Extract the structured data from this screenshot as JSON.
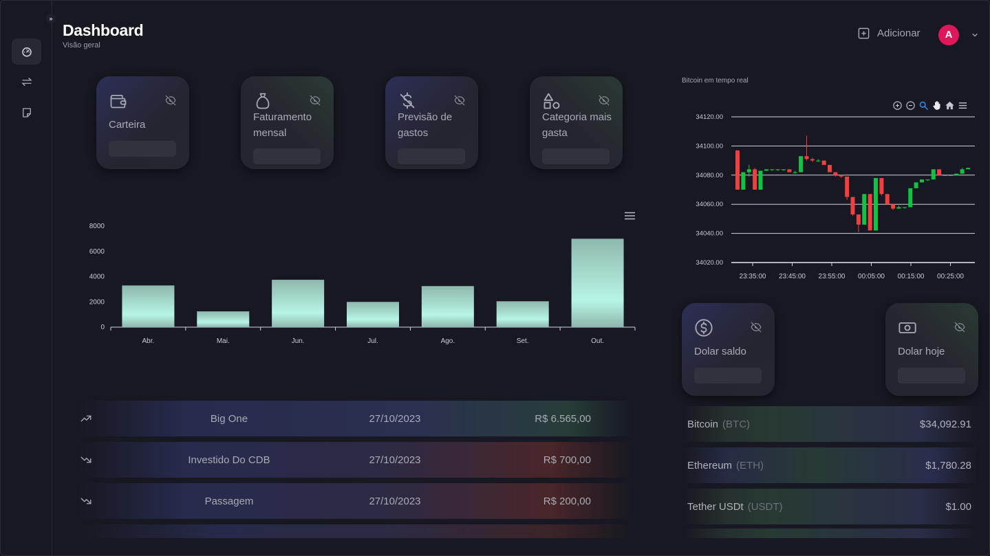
{
  "header": {
    "title": "Dashboard",
    "subtitle": "Visão geral",
    "add_label": "Adicionar",
    "avatar_initial": "A"
  },
  "sidebar": {
    "expand_label": "»",
    "items": [
      {
        "name": "dashboard",
        "icon": "gauge-icon",
        "active": true
      },
      {
        "name": "transactions",
        "icon": "arrows-exchange-icon",
        "active": false
      },
      {
        "name": "notes",
        "icon": "note-icon",
        "active": false
      }
    ]
  },
  "cards": [
    {
      "label": "Carteira",
      "icon": "wallet-icon"
    },
    {
      "label": "Faturamento mensal",
      "icon": "money-bag-icon"
    },
    {
      "label": "Previsão de gastos",
      "icon": "no-dollar-icon"
    },
    {
      "label": "Categoria mais gasta",
      "icon": "shapes-icon"
    }
  ],
  "chart_data": [
    {
      "type": "bar",
      "categories": [
        "Abr.",
        "Mai.",
        "Jun.",
        "Jul.",
        "Ago.",
        "Set.",
        "Out."
      ],
      "values": [
        3300,
        1250,
        3750,
        2000,
        3250,
        2050,
        7000
      ],
      "yticks": [
        "0",
        "2000",
        "4000",
        "6000",
        "8000"
      ],
      "ylim": [
        0,
        8000
      ],
      "color_top": "#8fb7ad",
      "color_bottom": "#b6f5e6"
    },
    {
      "type": "candlestick",
      "title": "Bitcoin em tempo real",
      "yticks": [
        "34020.00",
        "34040.00",
        "34060.00",
        "34080.00",
        "34100.00",
        "34120.00"
      ],
      "ylim": [
        34020,
        34120
      ],
      "xticks": [
        "23:35:00",
        "23:45:00",
        "23:55:00",
        "00:05:00",
        "00:15:00",
        "00:25:00"
      ],
      "up_color": "#13c244",
      "down_color": "#ef3f3f",
      "candles": [
        {
          "o": 34097,
          "h": 34097,
          "l": 34070,
          "c": 34070
        },
        {
          "o": 34070,
          "h": 34082,
          "l": 34070,
          "c": 34082
        },
        {
          "o": 34082,
          "h": 34087,
          "l": 34079,
          "c": 34084
        },
        {
          "o": 34084,
          "h": 34085,
          "l": 34070,
          "c": 34070
        },
        {
          "o": 34070,
          "h": 34083,
          "l": 34070,
          "c": 34083
        },
        {
          "o": 34083,
          "h": 34084,
          "l": 34083,
          "c": 34084
        },
        {
          "o": 34084,
          "h": 34084,
          "l": 34083,
          "c": 34084
        },
        {
          "o": 34084,
          "h": 34084,
          "l": 34083,
          "c": 34084
        },
        {
          "o": 34084,
          "h": 34084,
          "l": 34083,
          "c": 34084
        },
        {
          "o": 34084,
          "h": 34084,
          "l": 34082,
          "c": 34082
        },
        {
          "o": 34082,
          "h": 34083,
          "l": 34081,
          "c": 34082
        },
        {
          "o": 34082,
          "h": 34093,
          "l": 34082,
          "c": 34093
        },
        {
          "o": 34093,
          "h": 34107,
          "l": 34090,
          "c": 34091
        },
        {
          "o": 34091,
          "h": 34092,
          "l": 34089,
          "c": 34090
        },
        {
          "o": 34090,
          "h": 34091,
          "l": 34089,
          "c": 34090
        },
        {
          "o": 34090,
          "h": 34090,
          "l": 34087,
          "c": 34087
        },
        {
          "o": 34087,
          "h": 34087,
          "l": 34082,
          "c": 34082
        },
        {
          "o": 34082,
          "h": 34082,
          "l": 34079,
          "c": 34080
        },
        {
          "o": 34080,
          "h": 34080,
          "l": 34078,
          "c": 34079
        },
        {
          "o": 34079,
          "h": 34079,
          "l": 34063,
          "c": 34065
        },
        {
          "o": 34065,
          "h": 34065,
          "l": 34052,
          "c": 34053
        },
        {
          "o": 34053,
          "h": 34053,
          "l": 34041,
          "c": 34046
        },
        {
          "o": 34046,
          "h": 34067,
          "l": 34046,
          "c": 34067
        },
        {
          "o": 34067,
          "h": 34067,
          "l": 34042,
          "c": 34042
        },
        {
          "o": 34042,
          "h": 34078,
          "l": 34042,
          "c": 34078
        },
        {
          "o": 34078,
          "h": 34078,
          "l": 34066,
          "c": 34067
        },
        {
          "o": 34067,
          "h": 34067,
          "l": 34060,
          "c": 34060
        },
        {
          "o": 34060,
          "h": 34060,
          "l": 34056,
          "c": 34057
        },
        {
          "o": 34057,
          "h": 34059,
          "l": 34057,
          "c": 34058
        },
        {
          "o": 34058,
          "h": 34058,
          "l": 34057,
          "c": 34058
        },
        {
          "o": 34058,
          "h": 34071,
          "l": 34058,
          "c": 34071
        },
        {
          "o": 34071,
          "h": 34075,
          "l": 34071,
          "c": 34075
        },
        {
          "o": 34075,
          "h": 34077,
          "l": 34075,
          "c": 34077
        },
        {
          "o": 34077,
          "h": 34077,
          "l": 34076,
          "c": 34077
        },
        {
          "o": 34077,
          "h": 34084,
          "l": 34077,
          "c": 34084
        },
        {
          "o": 34084,
          "h": 34084,
          "l": 34080,
          "c": 34080
        },
        {
          "o": 34080,
          "h": 34080,
          "l": 34080,
          "c": 34080
        },
        {
          "o": 34080,
          "h": 34080,
          "l": 34080,
          "c": 34080
        },
        {
          "o": 34080,
          "h": 34081,
          "l": 34080,
          "c": 34081
        },
        {
          "o": 34081,
          "h": 34085,
          "l": 34081,
          "c": 34084
        },
        {
          "o": 34084,
          "h": 34085,
          "l": 34084,
          "c": 34085
        }
      ]
    }
  ],
  "dollar_cards": [
    {
      "label": "Dolar saldo",
      "icon": "dollar-circle-icon"
    },
    {
      "label": "Dolar hoje",
      "icon": "banknote-icon"
    }
  ],
  "transactions": [
    {
      "name": "Big One",
      "date": "27/10/2023",
      "amount": "R$ 6.565,00",
      "direction": "up",
      "icon": "trend-up-icon"
    },
    {
      "name": "Investido Do CDB",
      "date": "27/10/2023",
      "amount": "R$ 700,00",
      "direction": "down",
      "icon": "trend-down-icon"
    },
    {
      "name": "Passagem",
      "date": "27/10/2023",
      "amount": "R$ 200,00",
      "direction": "down",
      "icon": "trend-down-icon"
    }
  ],
  "cryptos": [
    {
      "name": "Bitcoin",
      "symbol": "(BTC)",
      "price": "$34,092.91"
    },
    {
      "name": "Ethereum",
      "symbol": "(ETH)",
      "price": "$1,780.28"
    },
    {
      "name": "Tether USDt",
      "symbol": "(USDT)",
      "price": "$1.00"
    }
  ],
  "colors": {
    "background": "#171821",
    "card": "#23252f",
    "accent_red": "#e0165a",
    "text": "#a8aab4"
  }
}
